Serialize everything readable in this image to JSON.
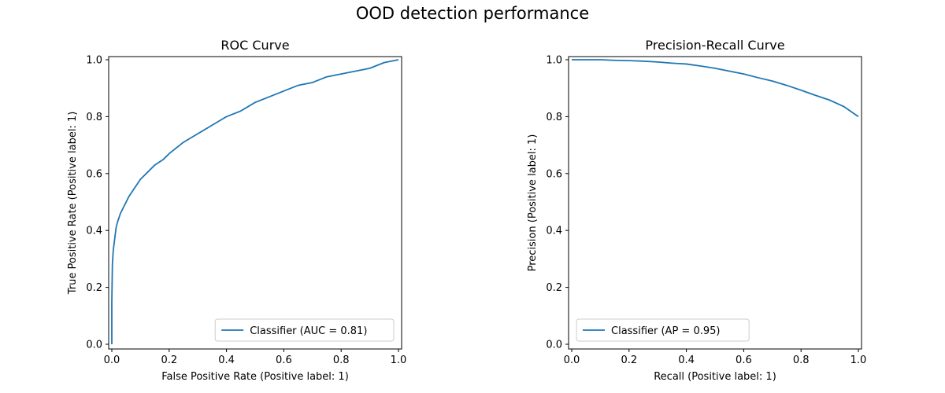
{
  "figure": {
    "title": "OOD detection performance"
  },
  "chart_data": [
    {
      "type": "line",
      "title": "ROC Curve",
      "xlabel": "False Positive Rate (Positive label: 1)",
      "ylabel": "True Positive Rate (Positive label: 1)",
      "xlim": [
        0,
        1
      ],
      "ylim": [
        0,
        1
      ],
      "xticks": [
        "0.0",
        "0.2",
        "0.4",
        "0.6",
        "0.8",
        "1.0"
      ],
      "yticks": [
        "0.0",
        "0.2",
        "0.4",
        "0.6",
        "0.8",
        "1.0"
      ],
      "grid": false,
      "legend_position": "lower-right",
      "series": [
        {
          "name": "Classifier (AUC = 0.81)",
          "color": "#1f77b4",
          "x": [
            0.0,
            0.0,
            0.002,
            0.005,
            0.01,
            0.015,
            0.02,
            0.03,
            0.04,
            0.05,
            0.06,
            0.08,
            0.1,
            0.12,
            0.15,
            0.18,
            0.2,
            0.25,
            0.3,
            0.35,
            0.4,
            0.45,
            0.5,
            0.55,
            0.6,
            0.65,
            0.7,
            0.75,
            0.8,
            0.85,
            0.9,
            0.95,
            1.0
          ],
          "y": [
            0.0,
            0.15,
            0.28,
            0.33,
            0.37,
            0.41,
            0.43,
            0.46,
            0.48,
            0.5,
            0.52,
            0.55,
            0.58,
            0.6,
            0.63,
            0.65,
            0.67,
            0.71,
            0.74,
            0.77,
            0.8,
            0.82,
            0.85,
            0.87,
            0.89,
            0.91,
            0.92,
            0.94,
            0.95,
            0.96,
            0.97,
            0.99,
            1.0
          ]
        }
      ]
    },
    {
      "type": "line",
      "title": "Precision-Recall Curve",
      "xlabel": "Recall (Positive label: 1)",
      "ylabel": "Precision (Positive label: 1)",
      "xlim": [
        0,
        1
      ],
      "ylim": [
        0,
        1
      ],
      "xticks": [
        "0.0",
        "0.2",
        "0.4",
        "0.6",
        "0.8",
        "1.0"
      ],
      "yticks": [
        "0.0",
        "0.2",
        "0.4",
        "0.6",
        "0.8",
        "1.0"
      ],
      "grid": false,
      "legend_position": "lower-left",
      "series": [
        {
          "name": "Classifier (AP = 0.95)",
          "color": "#1f77b4",
          "x": [
            0.0,
            0.05,
            0.1,
            0.15,
            0.2,
            0.25,
            0.3,
            0.35,
            0.4,
            0.45,
            0.5,
            0.55,
            0.6,
            0.65,
            0.7,
            0.75,
            0.8,
            0.85,
            0.9,
            0.95,
            1.0
          ],
          "y": [
            1.0,
            1.0,
            1.0,
            0.998,
            0.997,
            0.995,
            0.992,
            0.988,
            0.985,
            0.978,
            0.97,
            0.96,
            0.95,
            0.937,
            0.925,
            0.91,
            0.893,
            0.875,
            0.858,
            0.835,
            0.8
          ]
        }
      ]
    }
  ]
}
